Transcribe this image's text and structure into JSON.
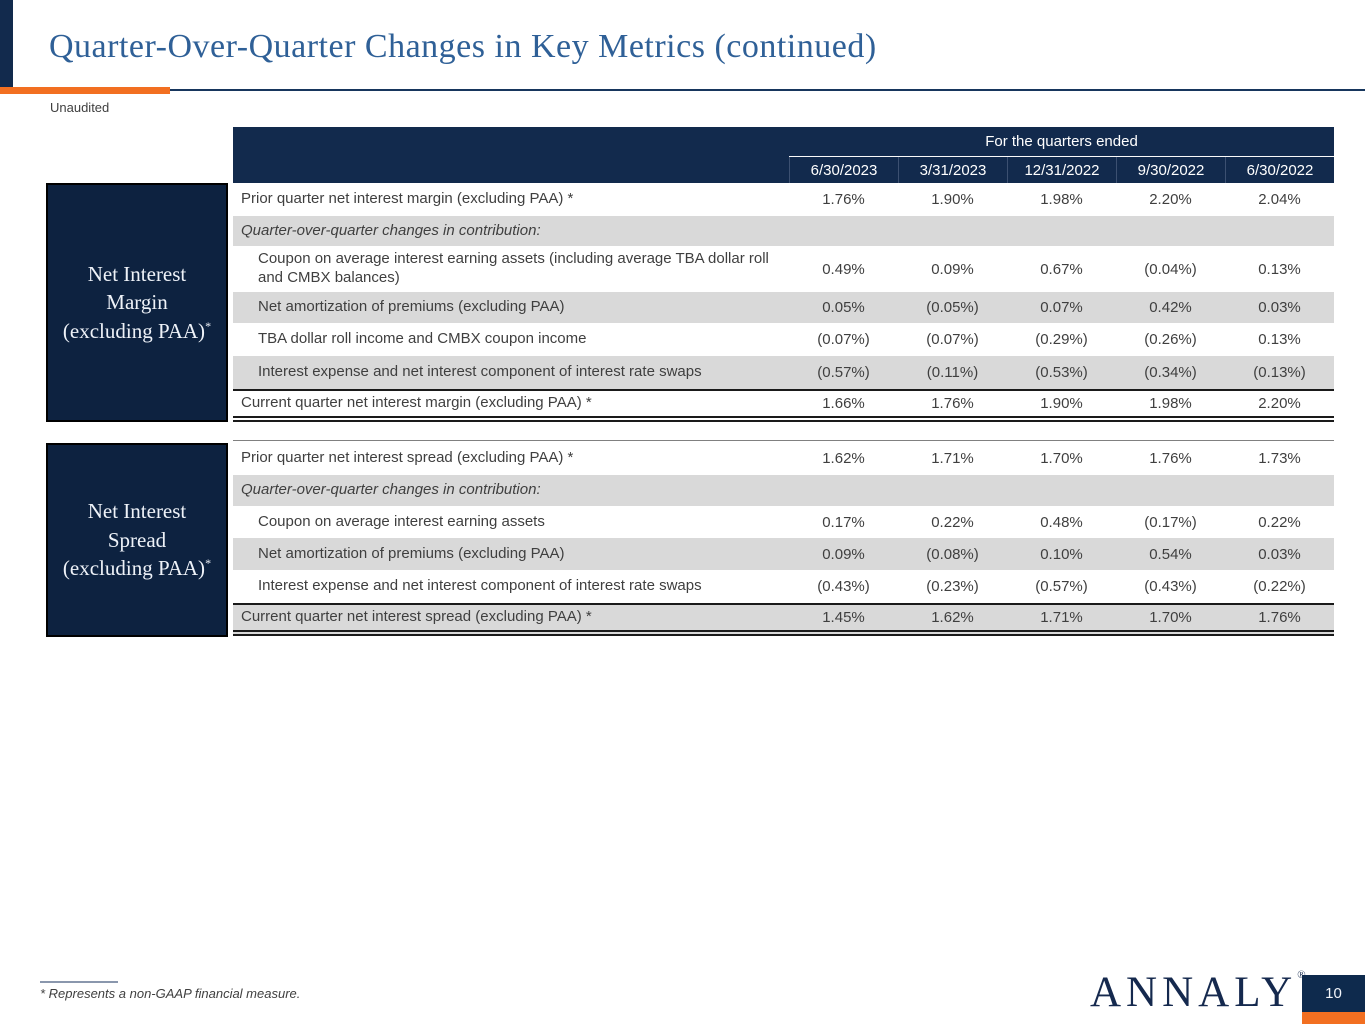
{
  "page": {
    "title": "Quarter-Over-Quarter Changes in Key Metrics (continued)",
    "subtitle": "Unaudited",
    "footnote": "* Represents a non-GAAP financial measure.",
    "logo_text": "ANNALY",
    "logo_reg_mark": "®",
    "page_number": "10"
  },
  "colors": {
    "navy": "#122a4d",
    "box_navy": "#0d2240",
    "orange": "#f26f21",
    "title_blue": "#2f6097",
    "row_gray": "#d9d9d9",
    "body_text": "#3f3f3f"
  },
  "table": {
    "header": {
      "title": "For the quarters ended",
      "columns": [
        "6/30/2023",
        "3/31/2023",
        "12/31/2022",
        "9/30/2022",
        "6/30/2022"
      ]
    },
    "sections": [
      {
        "side_label": "Net Interest Margin (excluding PAA)",
        "side_asterisk": "*",
        "rows": [
          {
            "label": "Prior quarter net interest margin (excluding PAA) *",
            "values": [
              "1.76%",
              "1.90%",
              "1.98%",
              "2.20%",
              "2.04%"
            ]
          },
          {
            "label": "Quarter-over-quarter changes in contribution:",
            "values": []
          },
          {
            "label": "Coupon on average interest earning assets (including average TBA dollar roll and CMBX balances)",
            "values": [
              "0.49%",
              "0.09%",
              "0.67%",
              "(0.04%)",
              "0.13%"
            ]
          },
          {
            "label": "Net amortization of premiums (excluding PAA)",
            "values": [
              "0.05%",
              "(0.05%)",
              "0.07%",
              "0.42%",
              "0.03%"
            ]
          },
          {
            "label": "TBA dollar roll income and CMBX coupon income",
            "values": [
              "(0.07%)",
              "(0.07%)",
              "(0.29%)",
              "(0.26%)",
              "0.13%"
            ]
          },
          {
            "label": "Interest expense and net interest component of interest rate swaps",
            "values": [
              "(0.57%)",
              "(0.11%)",
              "(0.53%)",
              "(0.34%)",
              "(0.13%)"
            ]
          },
          {
            "label": "Current quarter net interest margin (excluding PAA) *",
            "values": [
              "1.66%",
              "1.76%",
              "1.90%",
              "1.98%",
              "2.20%"
            ]
          }
        ]
      },
      {
        "side_label": "Net Interest Spread (excluding PAA)",
        "side_asterisk": "*",
        "rows": [
          {
            "label": "Prior quarter net interest spread (excluding PAA) *",
            "values": [
              "1.62%",
              "1.71%",
              "1.70%",
              "1.76%",
              "1.73%"
            ]
          },
          {
            "label": "Quarter-over-quarter changes in contribution:",
            "values": []
          },
          {
            "label": "Coupon on average interest earning assets",
            "values": [
              "0.17%",
              "0.22%",
              "0.48%",
              "(0.17%)",
              "0.22%"
            ]
          },
          {
            "label": "Net amortization of premiums (excluding PAA)",
            "values": [
              "0.09%",
              "(0.08%)",
              "0.10%",
              "0.54%",
              "0.03%"
            ]
          },
          {
            "label": "Interest expense and net interest component of interest rate swaps",
            "values": [
              "(0.43%)",
              "(0.23%)",
              "(0.57%)",
              "(0.43%)",
              "(0.22%)"
            ]
          },
          {
            "label": "Current quarter net interest spread (excluding PAA) *",
            "values": [
              "1.45%",
              "1.62%",
              "1.71%",
              "1.70%",
              "1.76%"
            ]
          }
        ]
      }
    ]
  }
}
